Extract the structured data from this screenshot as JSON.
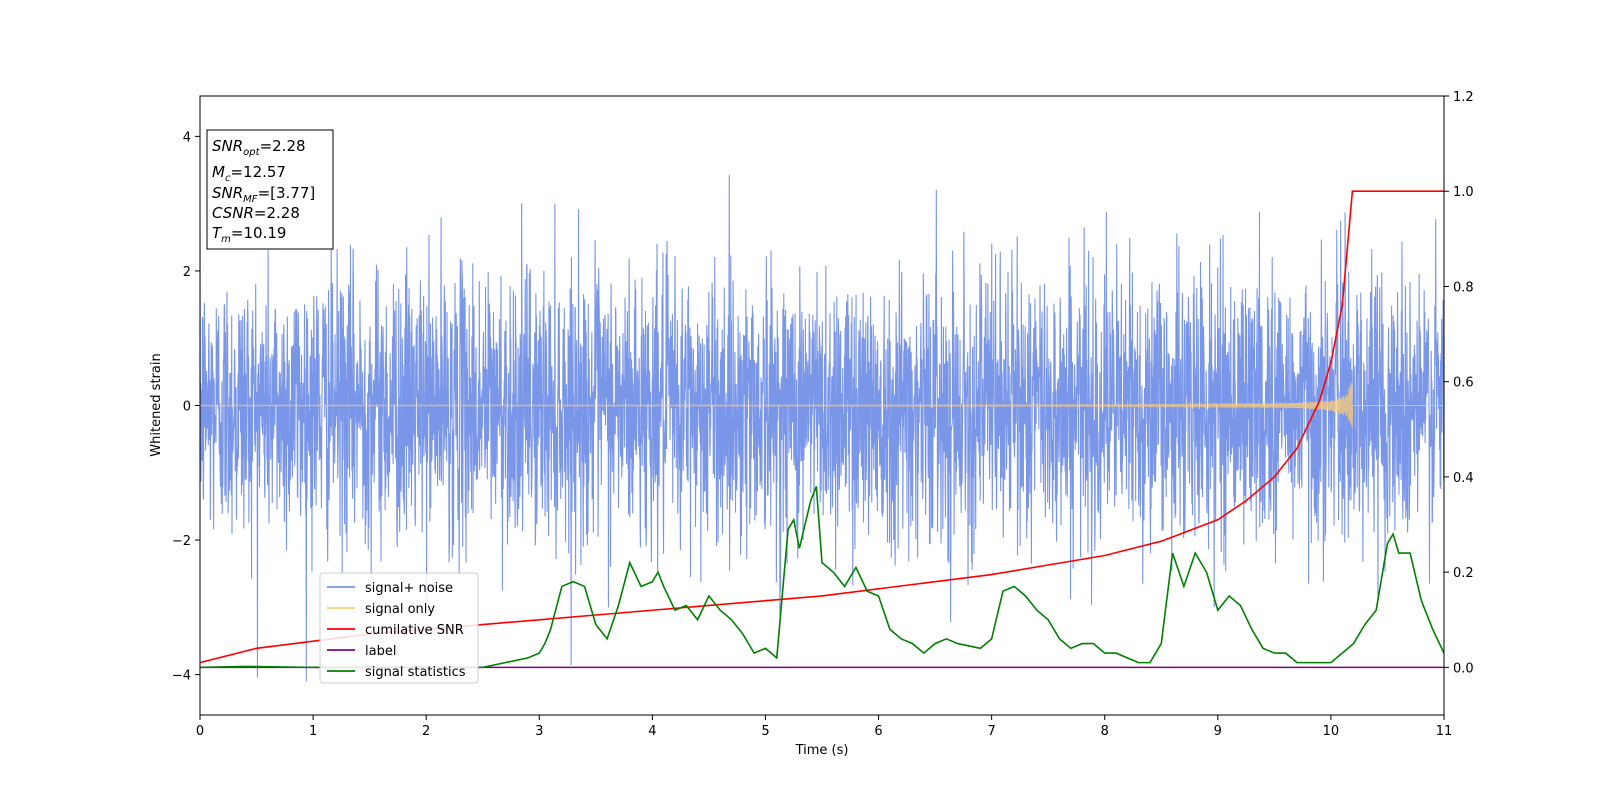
{
  "chart_data": {
    "type": "line",
    "title": "",
    "xlabel": "Time (s)",
    "ylabel": "Whitened strain",
    "y2label": "",
    "xlim": [
      0,
      11
    ],
    "ylim": [
      -4.6,
      4.6
    ],
    "y2lim": [
      -0.1,
      1.2
    ],
    "x_ticks": [
      0,
      1,
      2,
      3,
      4,
      5,
      6,
      7,
      8,
      9,
      10,
      11
    ],
    "y_ticks": [
      -4,
      -2,
      0,
      2,
      4
    ],
    "y2_ticks": [
      0.0,
      0.2,
      0.4,
      0.6,
      0.8,
      1.0,
      1.2
    ],
    "y2_tick_labels": [
      "0.0",
      "0.2",
      "0.4",
      "0.6",
      "0.8",
      "1.0",
      "1.2"
    ],
    "grid": false,
    "legend_position": "lower-left",
    "legend": [
      {
        "name": "signal+ noise",
        "color": "#7a96e8"
      },
      {
        "name": "signal only",
        "color": "#fccb75"
      },
      {
        "name": "cumilative SNR",
        "color": "#ff0000"
      },
      {
        "name": "label",
        "color": "#800080"
      },
      {
        "name": "signal statistics",
        "color": "#008000"
      }
    ],
    "info_box": {
      "snr_opt": {
        "main": "SNR",
        "sub": "opt",
        "value": "=2.28"
      },
      "mc": {
        "main": "M",
        "sub": "c",
        "value": "=12.57"
      },
      "snr_mf": {
        "main": "SNR",
        "sub": "MF",
        "value": "=[3.77]"
      },
      "csnr": {
        "main": "CSNR",
        "value": "=2.28"
      },
      "tm": {
        "main": "T",
        "sub": "m",
        "value": "=10.19"
      }
    },
    "series": [
      {
        "name": "signal+ noise",
        "axis": "left",
        "color": "#7a96e8",
        "description_values": {
          "x_range": [
            0,
            11
          ],
          "amplitude_std": 1.0,
          "peak_max": 4.15,
          "peak_min": -4.1
        }
      },
      {
        "name": "signal only",
        "axis": "left",
        "color": "#fccb75",
        "chirp": {
          "end_time": 10.19,
          "end_amplitude": 0.35
        }
      },
      {
        "name": "cumilative SNR",
        "axis": "right",
        "color": "#ff0000",
        "x": [
          0,
          0.5,
          1,
          1.5,
          2,
          2.5,
          3,
          3.5,
          4,
          4.5,
          5,
          5.5,
          6,
          6.5,
          7,
          7.5,
          8,
          8.5,
          9,
          9.25,
          9.5,
          9.7,
          9.9,
          10,
          10.1,
          10.19,
          11
        ],
        "y": [
          0.01,
          0.04,
          0.055,
          0.07,
          0.08,
          0.09,
          0.1,
          0.11,
          0.12,
          0.13,
          0.14,
          0.15,
          0.165,
          0.18,
          0.195,
          0.215,
          0.235,
          0.265,
          0.31,
          0.35,
          0.4,
          0.46,
          0.56,
          0.64,
          0.76,
          1.0,
          1.0
        ]
      },
      {
        "name": "label",
        "axis": "right",
        "color": "#800080",
        "x": [
          0,
          11
        ],
        "y": [
          0.0,
          0.0
        ]
      },
      {
        "name": "signal statistics",
        "axis": "right",
        "color": "#008000",
        "x": [
          0,
          0.4,
          1.0,
          2.0,
          2.5,
          2.7,
          2.9,
          3.0,
          3.05,
          3.1,
          3.2,
          3.3,
          3.4,
          3.5,
          3.6,
          3.7,
          3.8,
          3.9,
          4.0,
          4.05,
          4.1,
          4.2,
          4.3,
          4.4,
          4.5,
          4.6,
          4.7,
          4.8,
          4.9,
          5.0,
          5.1,
          5.2,
          5.25,
          5.3,
          5.4,
          5.45,
          5.5,
          5.6,
          5.7,
          5.8,
          5.9,
          6.0,
          6.1,
          6.2,
          6.3,
          6.4,
          6.5,
          6.6,
          6.7,
          6.9,
          7.0,
          7.1,
          7.2,
          7.3,
          7.4,
          7.5,
          7.6,
          7.7,
          7.8,
          7.9,
          8.0,
          8.1,
          8.2,
          8.3,
          8.4,
          8.5,
          8.6,
          8.7,
          8.8,
          8.9,
          9.0,
          9.1,
          9.2,
          9.3,
          9.4,
          9.5,
          9.6,
          9.7,
          9.8,
          9.9,
          10.0,
          10.1,
          10.2,
          10.3,
          10.4,
          10.5,
          10.55,
          10.6,
          10.7,
          10.8,
          10.9,
          11.0
        ],
        "y": [
          0.0,
          0.002,
          0.0,
          0.0,
          0.0,
          0.01,
          0.02,
          0.03,
          0.05,
          0.08,
          0.17,
          0.18,
          0.17,
          0.09,
          0.06,
          0.13,
          0.22,
          0.17,
          0.18,
          0.2,
          0.17,
          0.12,
          0.13,
          0.1,
          0.15,
          0.12,
          0.1,
          0.07,
          0.03,
          0.04,
          0.02,
          0.29,
          0.31,
          0.25,
          0.35,
          0.38,
          0.22,
          0.2,
          0.17,
          0.21,
          0.16,
          0.15,
          0.08,
          0.06,
          0.05,
          0.03,
          0.05,
          0.06,
          0.05,
          0.04,
          0.06,
          0.16,
          0.17,
          0.15,
          0.12,
          0.1,
          0.06,
          0.04,
          0.05,
          0.05,
          0.03,
          0.03,
          0.02,
          0.01,
          0.01,
          0.05,
          0.24,
          0.17,
          0.24,
          0.2,
          0.12,
          0.15,
          0.13,
          0.08,
          0.04,
          0.03,
          0.03,
          0.01,
          0.01,
          0.01,
          0.01,
          0.03,
          0.05,
          0.09,
          0.12,
          0.26,
          0.28,
          0.24,
          0.24,
          0.14,
          0.08,
          0.03
        ]
      }
    ]
  }
}
